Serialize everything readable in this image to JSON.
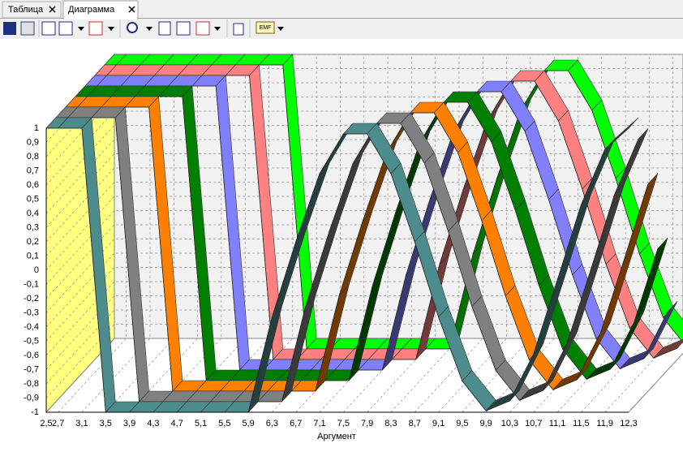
{
  "tabs": [
    {
      "label": "Таблица"
    },
    {
      "label": "Диаграмма"
    }
  ],
  "toolbar": {
    "emf_label": "EMF"
  },
  "chart_data": {
    "type": "ribbon3d",
    "x_label": "Аргумент",
    "x": [
      2.5,
      2.7,
      3.1,
      3.5,
      3.9,
      4.3,
      4.7,
      5.1,
      5.5,
      5.9,
      6.3,
      6.7,
      7.1,
      7.5,
      7.9,
      8.3,
      8.7,
      9.1,
      9.5,
      9.9,
      10.3,
      10.7,
      11.1,
      11.5,
      11.9,
      12.3
    ],
    "series": [
      {
        "color": "#4d8c8c",
        "values": [
          1,
          1,
          1,
          -1,
          -1,
          -1,
          -1,
          -1,
          -1,
          -1,
          -0.33,
          0.2,
          0.68,
          0.96,
          0.96,
          0.68,
          0.2,
          -0.33,
          -0.78,
          -0.99,
          -0.92,
          -0.59,
          -0.07,
          0.46,
          0.85,
          1
        ]
      },
      {
        "color": "#808080",
        "values": [
          1,
          1,
          1,
          1,
          -1,
          -1,
          -1,
          -1,
          -1,
          -1,
          -1,
          -0.33,
          0.2,
          0.68,
          0.96,
          0.96,
          0.68,
          0.2,
          -0.33,
          -0.78,
          -0.99,
          -0.92,
          -0.59,
          -0.07,
          0.46,
          0.85
        ]
      },
      {
        "color": "#ff8000",
        "values": [
          1,
          1,
          1,
          1,
          1,
          -1,
          -1,
          -1,
          -1,
          -1,
          -1,
          -1,
          -0.33,
          0.2,
          0.68,
          0.96,
          0.96,
          0.68,
          0.2,
          -0.33,
          -0.78,
          -0.99,
          -0.92,
          -0.59,
          -0.07,
          0.46
        ]
      },
      {
        "color": "#008000",
        "values": [
          1,
          1,
          1,
          1,
          1,
          1,
          -1,
          -1,
          -1,
          -1,
          -1,
          -1,
          -1,
          -0.33,
          0.2,
          0.68,
          0.96,
          0.96,
          0.68,
          0.2,
          -0.33,
          -0.78,
          -0.99,
          -0.92,
          -0.59,
          -0.07
        ]
      },
      {
        "color": "#8080ff",
        "values": [
          1,
          1,
          1,
          1,
          1,
          1,
          1,
          -1,
          -1,
          -1,
          -1,
          -1,
          -1,
          -1,
          -0.33,
          0.2,
          0.68,
          0.96,
          0.96,
          0.68,
          0.2,
          -0.33,
          -0.78,
          -0.99,
          -0.92,
          -0.59
        ]
      },
      {
        "color": "#ff8080",
        "values": [
          1,
          1,
          1,
          1,
          1,
          1,
          1,
          1,
          -1,
          -1,
          -1,
          -1,
          -1,
          -1,
          -1,
          -0.33,
          0.2,
          0.68,
          0.96,
          0.96,
          0.68,
          0.2,
          -0.33,
          -0.78,
          -0.99,
          -0.92
        ]
      },
      {
        "color": "#00ff00",
        "values": [
          1,
          1,
          1,
          1,
          1,
          1,
          1,
          1,
          1,
          -1,
          -1,
          -1,
          -1,
          -1,
          -1,
          -1,
          -0.33,
          0.2,
          0.68,
          0.96,
          0.96,
          0.68,
          0.2,
          -0.33,
          -0.78,
          -0.99
        ]
      }
    ],
    "xlim": [
      2.5,
      12.3
    ],
    "xticks": [
      {
        "value": 2.5,
        "label": "2,5"
      },
      {
        "value": 2.7,
        "label": "2,7"
      },
      {
        "value": 3.1,
        "label": "3,1"
      },
      {
        "value": 3.5,
        "label": "3,5"
      },
      {
        "value": 3.9,
        "label": "3,9"
      },
      {
        "value": 4.3,
        "label": "4,3"
      },
      {
        "value": 4.7,
        "label": "4,7"
      },
      {
        "value": 5.1,
        "label": "5,1"
      },
      {
        "value": 5.5,
        "label": "5,5"
      },
      {
        "value": 5.9,
        "label": "5,9"
      },
      {
        "value": 6.3,
        "label": "6,3"
      },
      {
        "value": 6.7,
        "label": "6,7"
      },
      {
        "value": 7.1,
        "label": "7,1"
      },
      {
        "value": 7.5,
        "label": "7,5"
      },
      {
        "value": 7.9,
        "label": "7,9"
      },
      {
        "value": 8.3,
        "label": "8,3"
      },
      {
        "value": 8.7,
        "label": "8,7"
      },
      {
        "value": 9.1,
        "label": "9,1"
      },
      {
        "value": 9.5,
        "label": "9,5"
      },
      {
        "value": 9.9,
        "label": "9,9"
      },
      {
        "value": 10.3,
        "label": "10,3"
      },
      {
        "value": 10.7,
        "label": "10,7"
      },
      {
        "value": 11.1,
        "label": "11,1"
      },
      {
        "value": 11.5,
        "label": "11,5"
      },
      {
        "value": 11.9,
        "label": "11,9"
      },
      {
        "value": 12.3,
        "label": "12,3"
      }
    ],
    "ylim": [
      -1,
      1
    ],
    "yticks": [
      -1,
      {
        "value": -0.9,
        "label": "-0,9"
      },
      {
        "value": -0.8,
        "label": "-0,8"
      },
      {
        "value": -0.7,
        "label": "-0,7"
      },
      {
        "value": -0.6,
        "label": "-0,6"
      },
      {
        "value": -0.5,
        "label": "-0,5"
      },
      {
        "value": -0.4,
        "label": "-0,4"
      },
      {
        "value": -0.3,
        "label": "-0,3"
      },
      {
        "value": -0.2,
        "label": "-0,2"
      },
      {
        "value": -0.1,
        "label": "-0,1"
      },
      0,
      {
        "value": 0.1,
        "label": "0,1"
      },
      {
        "value": 0.2,
        "label": "0,2"
      },
      {
        "value": 0.3,
        "label": "0,3"
      },
      {
        "value": 0.4,
        "label": "0,4"
      },
      {
        "value": 0.5,
        "label": "0,5"
      },
      {
        "value": 0.6,
        "label": "0,6"
      },
      {
        "value": 0.7,
        "label": "0,7"
      },
      {
        "value": 0.8,
        "label": "0,8"
      },
      {
        "value": 0.9,
        "label": "0,9"
      },
      1
    ],
    "grid": true
  }
}
